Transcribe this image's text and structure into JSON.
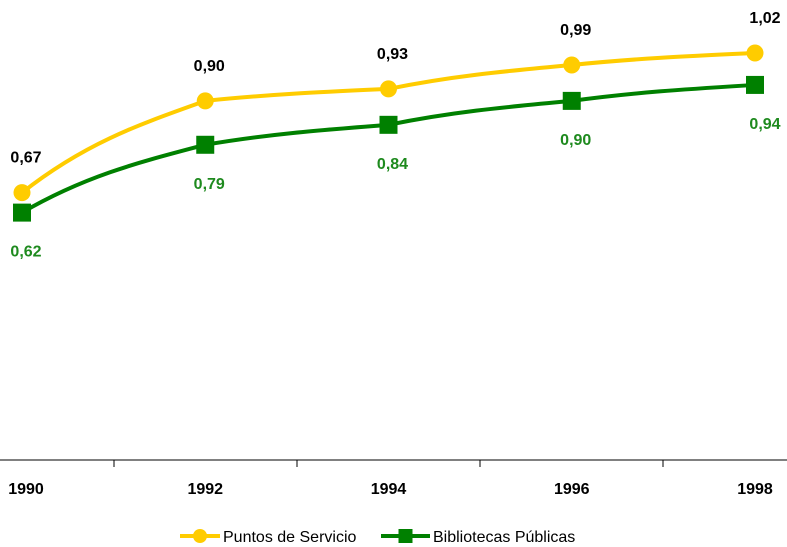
{
  "chart_data": {
    "type": "line",
    "x": [
      "1990",
      "1992",
      "1994",
      "1996",
      "1998"
    ],
    "categories": [
      "1990",
      "1992",
      "1994",
      "1996",
      "1998"
    ],
    "series": [
      {
        "name": "Puntos de Servicio",
        "values": [
          0.67,
          0.9,
          0.93,
          0.99,
          1.02
        ],
        "labels": [
          "0,67",
          "0,90",
          "0,93",
          "0,99",
          "1,02"
        ],
        "color": "#FFCC00",
        "label_color": "#000000",
        "marker": "circle"
      },
      {
        "name": "Bibliotecas Públicas",
        "values": [
          0.62,
          0.79,
          0.84,
          0.9,
          0.94
        ],
        "labels": [
          "0,62",
          "0,79",
          "0,84",
          "0,90",
          "0,94"
        ],
        "color": "#008000",
        "label_color": "#1E8A1E",
        "marker": "square"
      }
    ],
    "title": "",
    "xlabel": "",
    "ylabel": "",
    "ylim": [
      0,
      1.1
    ],
    "grid": false,
    "legend": "bottom",
    "y_axis_visible": false
  }
}
